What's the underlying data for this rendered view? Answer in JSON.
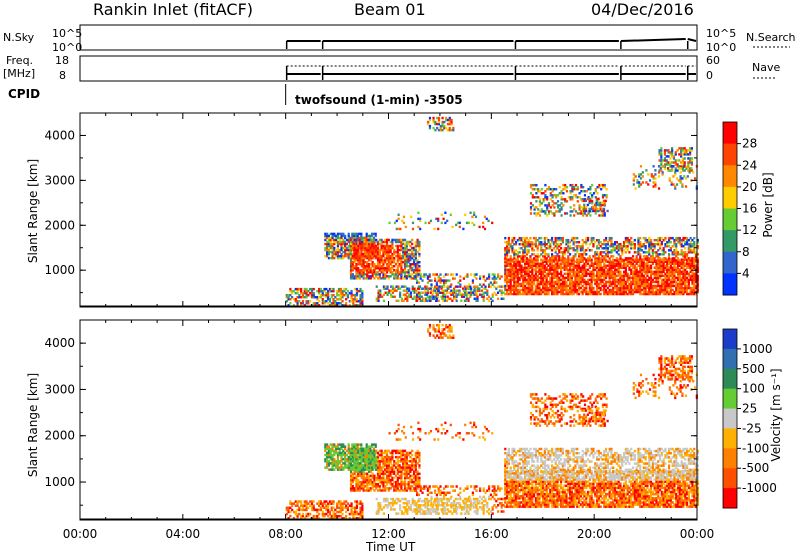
{
  "header": {
    "station": "Rankin Inlet (fitACF)",
    "beam": "Beam 01",
    "date": "04/Dec/2016"
  },
  "noise_panel": {
    "left_label": "N.Sky",
    "left_ticks": [
      "10^5",
      "10^0"
    ],
    "right_ticks": [
      "10^5",
      "10^0"
    ],
    "right_label": "N.Search"
  },
  "freq_panel": {
    "left_label_1": "Freq.",
    "left_label_2": "[MHz]",
    "left_ticks": [
      "18",
      "8"
    ],
    "right_ticks": [
      "60",
      "0"
    ],
    "right_label": "Nave"
  },
  "cpid": {
    "label": "CPID",
    "program": "twofsound (1-min) -3505"
  },
  "chart_data": [
    {
      "type": "heatmap",
      "name": "power-rti",
      "ylabel": "Slant Range [km]",
      "ylim": [
        180,
        4500
      ],
      "yticks": [
        "1000",
        "2000",
        "3000",
        "4000"
      ],
      "xlim_hours": [
        0,
        24
      ],
      "colorbar": {
        "label": "Power [dB]",
        "tick_labels": [
          "28",
          "24",
          "20",
          "16",
          "12",
          "8",
          "4"
        ],
        "colors": [
          "#ff0000",
          "#ff4400",
          "#ff8800",
          "#ffcc00",
          "#66cc33",
          "#339966",
          "#3366cc",
          "#0033ff"
        ]
      }
    },
    {
      "type": "heatmap",
      "name": "velocity-rti",
      "ylabel": "Slant Range [km]",
      "ylim": [
        180,
        4500
      ],
      "yticks": [
        "1000",
        "2000",
        "3000",
        "4000"
      ],
      "xlim_hours": [
        0,
        24
      ],
      "colorbar": {
        "label": "Velocity [m s⁻¹]",
        "tick_labels": [
          "1000",
          "500",
          "100",
          "25",
          "-25",
          "-100",
          "-500",
          "-1000"
        ],
        "colors": [
          "#1a3cc8",
          "#3070b0",
          "#2e8b57",
          "#66cc33",
          "#c8c8c8",
          "#ffb000",
          "#ff8000",
          "#ff5000",
          "#ff0000"
        ]
      }
    }
  ],
  "xaxis": {
    "ticks": [
      "00:00",
      "04:00",
      "08:00",
      "12:00",
      "16:00",
      "20:00",
      "00:00"
    ],
    "label": "Time UT"
  }
}
